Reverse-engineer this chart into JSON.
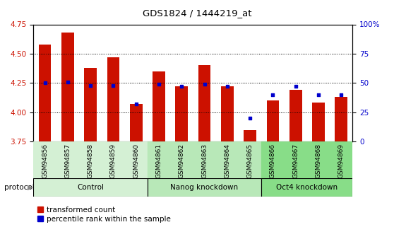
{
  "title": "GDS1824 / 1444219_at",
  "samples": [
    "GSM94856",
    "GSM94857",
    "GSM94858",
    "GSM94859",
    "GSM94860",
    "GSM94861",
    "GSM94862",
    "GSM94863",
    "GSM94864",
    "GSM94865",
    "GSM94866",
    "GSM94867",
    "GSM94868",
    "GSM94869"
  ],
  "red_values": [
    4.58,
    4.68,
    4.38,
    4.47,
    4.07,
    4.35,
    4.22,
    4.4,
    4.22,
    3.85,
    4.1,
    4.19,
    4.08,
    4.13
  ],
  "blue_values": [
    50,
    51,
    48,
    48,
    32,
    49,
    47,
    49,
    47,
    20,
    40,
    47,
    40,
    40
  ],
  "bar_color": "#CC1100",
  "dot_color": "#0000CC",
  "ylim_left": [
    3.75,
    4.75
  ],
  "ylim_right": [
    0,
    100
  ],
  "yticks_left": [
    3.75,
    4.0,
    4.25,
    4.5,
    4.75
  ],
  "yticks_right": [
    0,
    25,
    50,
    75,
    100
  ],
  "ytick_labels_right": [
    "0",
    "25",
    "50",
    "75",
    "100%"
  ],
  "group_starts": [
    0,
    5,
    10
  ],
  "group_ends": [
    5,
    10,
    14
  ],
  "group_labels": [
    "Control",
    "Nanog knockdown",
    "Oct4 knockdown"
  ],
  "group_colors": [
    "#d4f0d4",
    "#b8e8b8",
    "#88dd88"
  ],
  "protocol_label": "protocol",
  "legend_red": "transformed count",
  "legend_blue": "percentile rank within the sample",
  "bar_width": 0.55,
  "baseline": 3.75,
  "tick_label_color_left": "#CC1100",
  "tick_label_color_right": "#0000CC"
}
